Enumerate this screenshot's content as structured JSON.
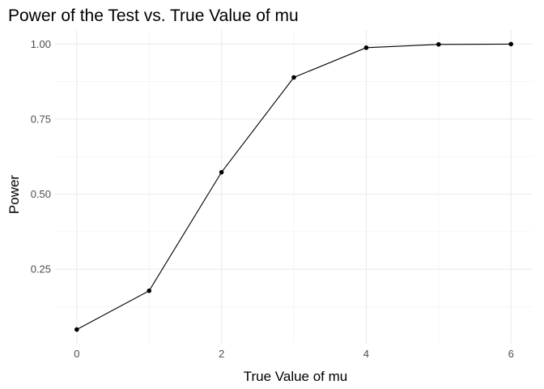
{
  "chart_data": {
    "type": "line",
    "title": "Power of the Test vs. True Value of mu",
    "xlabel": "True Value of mu",
    "ylabel": "Power",
    "x": [
      0,
      1,
      2,
      3,
      4,
      5,
      6
    ],
    "y": [
      0.049,
      0.178,
      0.573,
      0.889,
      0.988,
      0.999,
      1.0
    ],
    "xlim": [
      -0.3,
      6.3
    ],
    "ylim": [
      0.002,
      1.047
    ],
    "x_ticks": [
      0,
      2,
      4,
      6
    ],
    "x_tick_labels": [
      "0",
      "2",
      "4",
      "6"
    ],
    "y_ticks": [
      0.25,
      0.5,
      0.75,
      1.0
    ],
    "y_tick_labels": [
      "0.25",
      "0.50",
      "0.75",
      "1.00"
    ],
    "grid": true,
    "line_color": "#000000",
    "point_color": "#000000"
  }
}
